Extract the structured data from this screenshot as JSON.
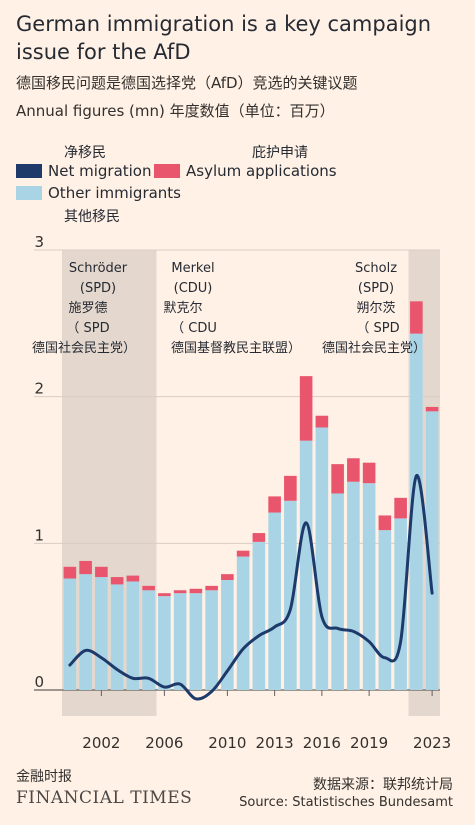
{
  "header": {
    "title": "German immigration is a key campaign issue for the AfD",
    "subtitle_cn": "德国移民问题是德国选择党（AfD）竞选的关键议题",
    "subtitle": "Annual figures (mn) 年度数值（单位：百万）"
  },
  "legend": {
    "net_migration": "Net migration",
    "net_migration_cn": "净移民",
    "asylum": "Asylum applications",
    "asylum_cn": "庇护申请",
    "other": "Other immigrants",
    "other_cn": "其他移民"
  },
  "colors": {
    "background": "#fff1e5",
    "other_immigrants": "#a8d4e6",
    "asylum": "#e8556d",
    "net_migration": "#1d3a6b",
    "shade": "#e4d8ce"
  },
  "chart_data": {
    "type": "bar",
    "stacked": true,
    "x": [
      2000,
      2001,
      2002,
      2003,
      2004,
      2005,
      2006,
      2007,
      2008,
      2009,
      2010,
      2011,
      2012,
      2013,
      2014,
      2015,
      2016,
      2017,
      2018,
      2019,
      2020,
      2021,
      2022,
      2023
    ],
    "series": [
      {
        "name": "Other immigrants",
        "values": [
          0.76,
          0.79,
          0.77,
          0.72,
          0.74,
          0.68,
          0.64,
          0.66,
          0.66,
          0.68,
          0.75,
          0.91,
          1.01,
          1.21,
          1.29,
          1.7,
          1.79,
          1.34,
          1.42,
          1.41,
          1.09,
          1.17,
          2.43,
          1.9
        ]
      },
      {
        "name": "Asylum applications",
        "values": [
          0.08,
          0.09,
          0.07,
          0.05,
          0.04,
          0.03,
          0.02,
          0.02,
          0.03,
          0.03,
          0.04,
          0.04,
          0.06,
          0.11,
          0.17,
          0.44,
          0.08,
          0.2,
          0.16,
          0.14,
          0.1,
          0.14,
          0.22,
          0.03
        ]
      },
      {
        "name": "Net migration",
        "type": "line",
        "values": [
          0.17,
          0.27,
          0.22,
          0.14,
          0.08,
          0.08,
          0.02,
          0.04,
          -0.06,
          -0.01,
          0.13,
          0.28,
          0.37,
          0.43,
          0.55,
          1.14,
          0.5,
          0.42,
          0.4,
          0.33,
          0.22,
          0.33,
          1.46,
          0.66
        ]
      }
    ],
    "ylim": [
      0,
      3
    ],
    "y_ticks": [
      "0",
      "1",
      "2",
      "3"
    ],
    "x_tick_labels": [
      {
        "year": 2002,
        "label": "2002"
      },
      {
        "year": 2006,
        "label": "2006"
      },
      {
        "year": 2010,
        "label": "2010"
      },
      {
        "year": 2013,
        "label": "2013"
      },
      {
        "year": 2016,
        "label": "2016"
      },
      {
        "year": 2019,
        "label": "2019"
      },
      {
        "year": 2023,
        "label": "2023"
      }
    ],
    "grid": "horizontal",
    "shaded_periods": [
      {
        "from": 2000,
        "to": 2005
      },
      {
        "from": 2022,
        "to": 2023
      }
    ],
    "annotations": [
      {
        "lines": [
          "Schröder",
          "(SPD)",
          "施罗德",
          "（ SPD",
          "德国社会民主党）"
        ],
        "position": "top-left"
      },
      {
        "lines": [
          "Merkel",
          "(CDU)",
          "默克尔",
          "（ CDU",
          "德国基督教民主联盟）"
        ],
        "position": "top-center"
      },
      {
        "lines": [
          "Scholz",
          "(SPD)",
          "朔尔茨",
          "（ SPD",
          "德国社会民主党）"
        ],
        "position": "top-right"
      }
    ]
  },
  "footer": {
    "publisher_cn": "金融时报",
    "publisher": "FINANCIAL TIMES",
    "source_cn": "数据来源：联邦统计局",
    "source": "Source: Statistisches Bundesamt"
  }
}
